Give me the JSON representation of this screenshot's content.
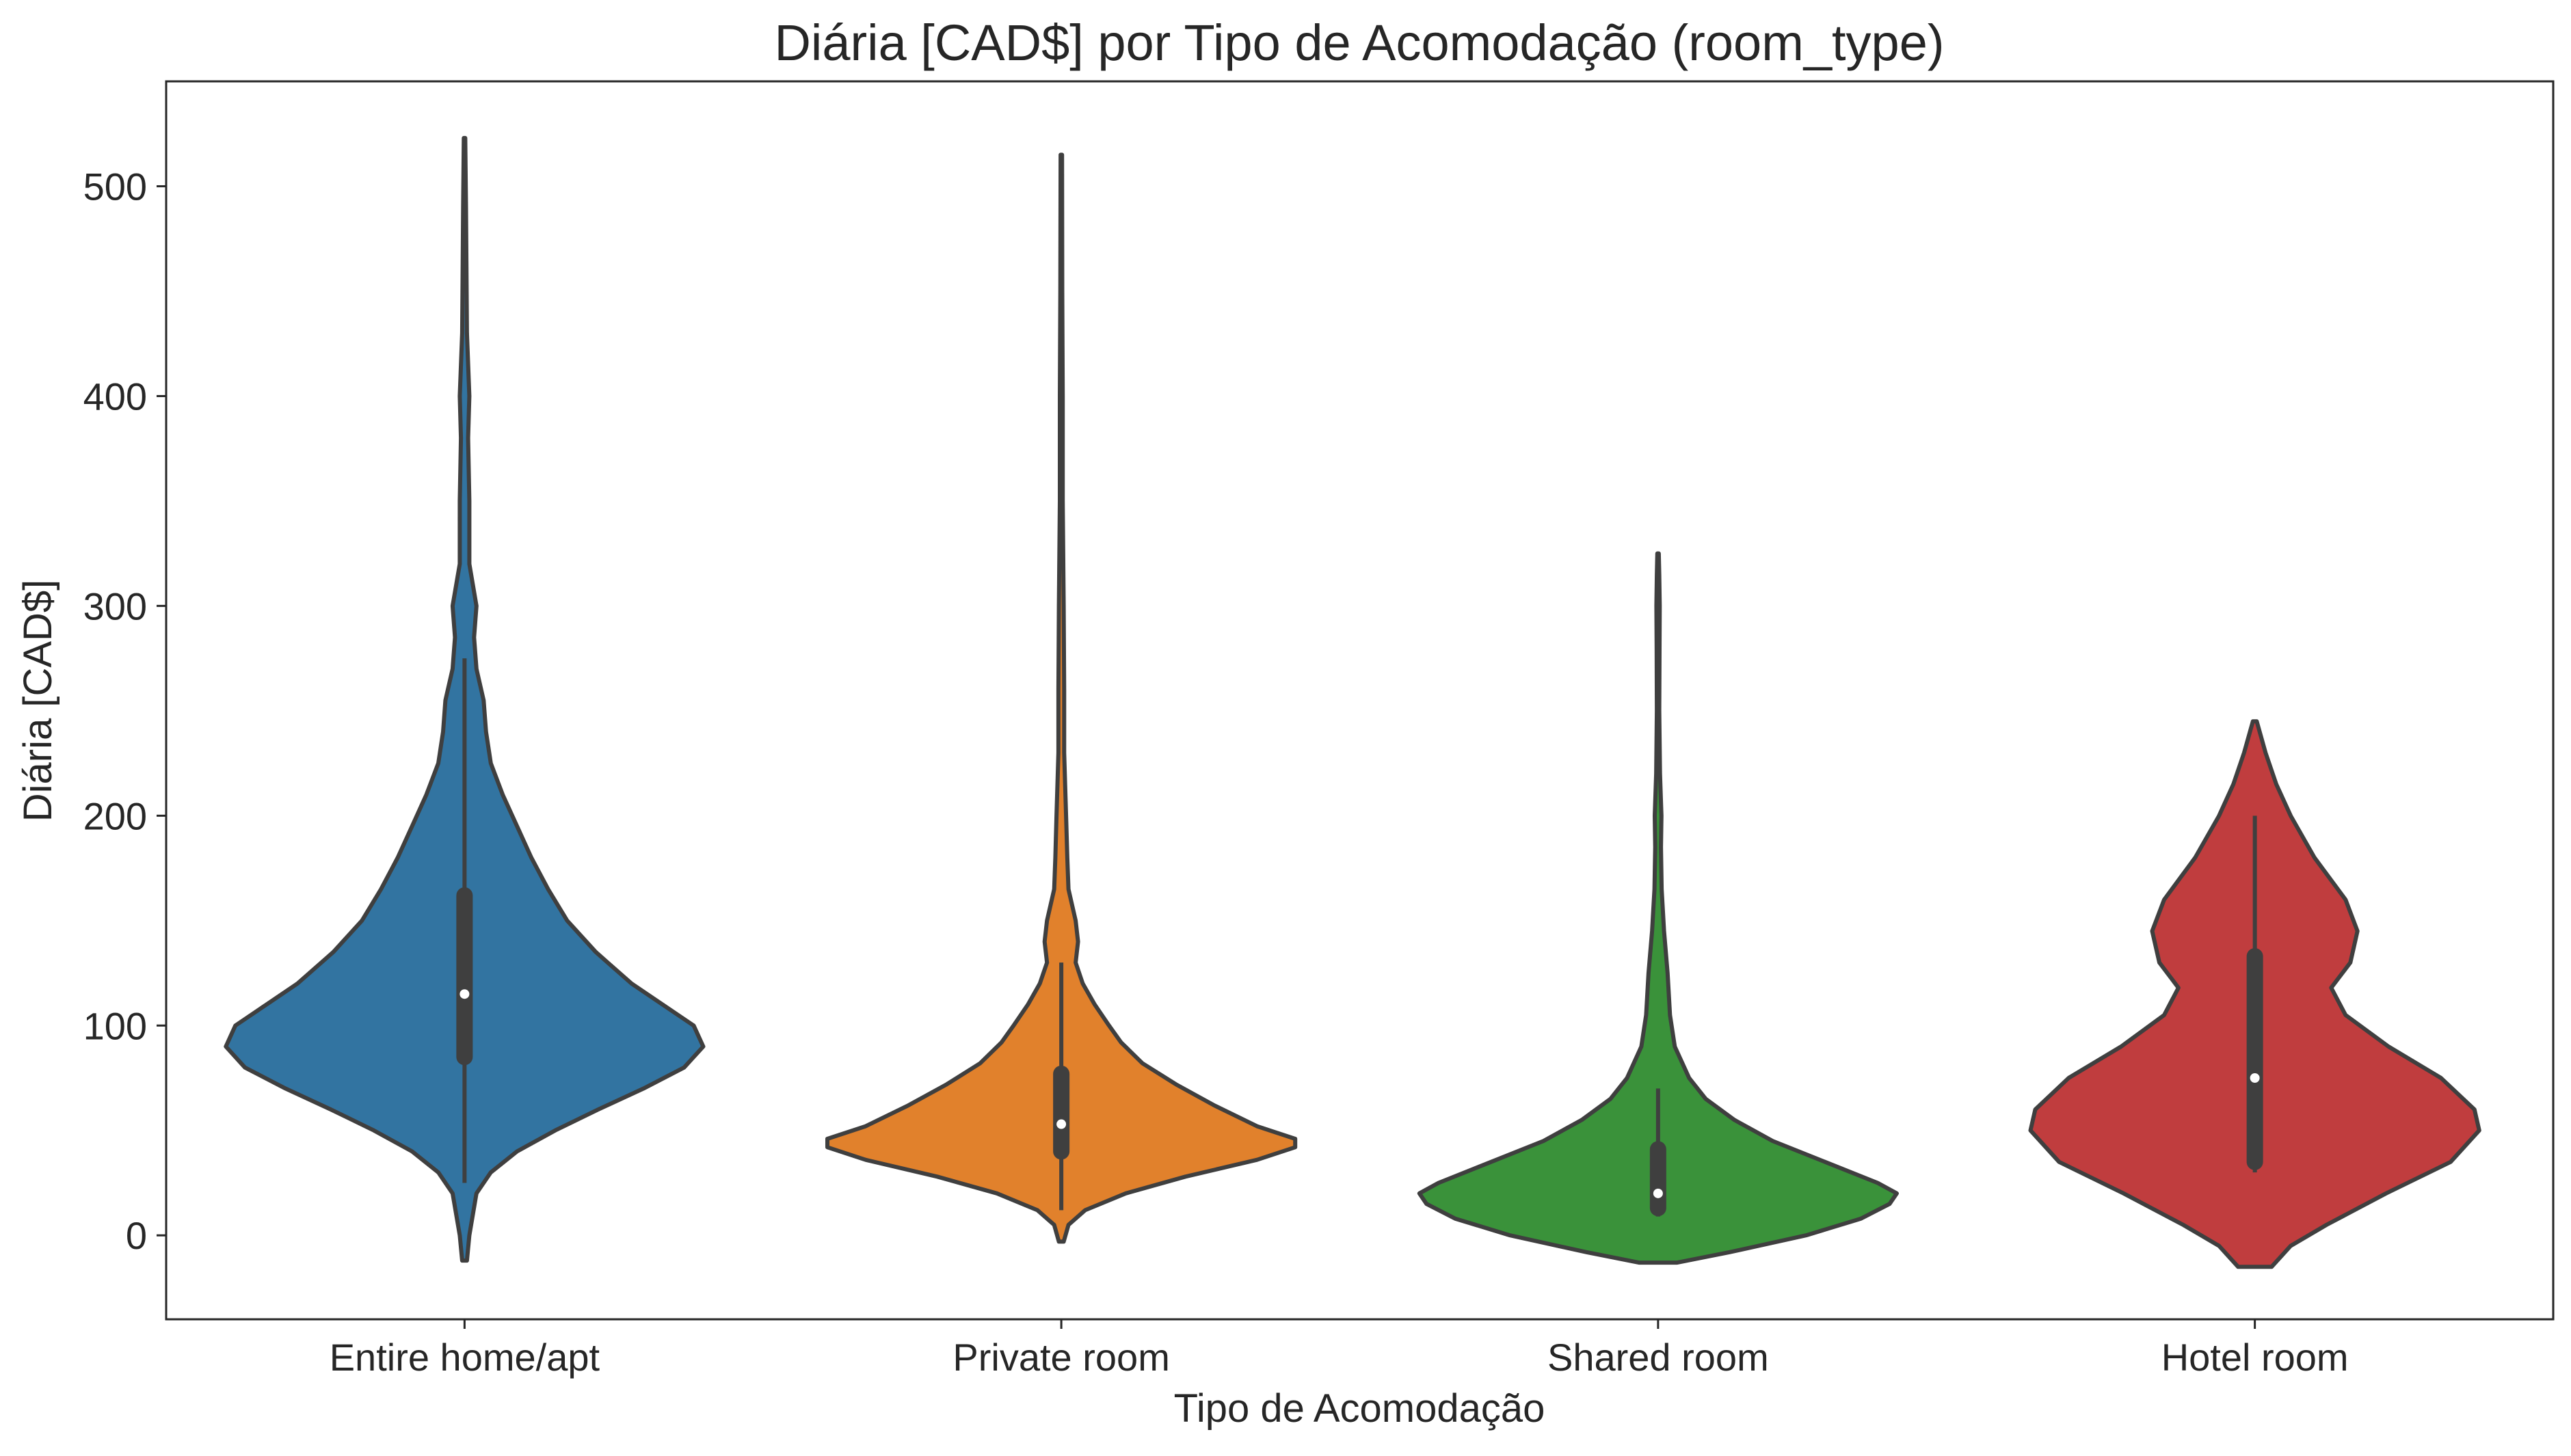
{
  "chart_data": {
    "type": "violin",
    "title": "Diária [CAD$] por Tipo de Acomodação (room_type)",
    "xlabel": "Tipo de Acomodação",
    "ylabel": "Diária [CAD$]",
    "ylim": [
      -40,
      550
    ],
    "yticks": [
      0,
      100,
      200,
      300,
      400,
      500
    ],
    "grid": false,
    "legend": "none",
    "categories": [
      "Entire home/apt",
      "Private room",
      "Shared room",
      "Hotel room"
    ],
    "series": [
      {
        "color": "#3274a1",
        "median": 115,
        "q1": 85,
        "q3": 162,
        "whisker_low": 25,
        "whisker_high": 275,
        "min": -12,
        "max": 523,
        "density": [
          [
            -12,
            0.01
          ],
          [
            0,
            0.02
          ],
          [
            20,
            0.05
          ],
          [
            30,
            0.11
          ],
          [
            40,
            0.22
          ],
          [
            50,
            0.38
          ],
          [
            60,
            0.56
          ],
          [
            70,
            0.75
          ],
          [
            80,
            0.92
          ],
          [
            90,
            1.0
          ],
          [
            100,
            0.96
          ],
          [
            110,
            0.83
          ],
          [
            120,
            0.7
          ],
          [
            135,
            0.55
          ],
          [
            150,
            0.43
          ],
          [
            165,
            0.35
          ],
          [
            180,
            0.28
          ],
          [
            195,
            0.22
          ],
          [
            210,
            0.16
          ],
          [
            225,
            0.11
          ],
          [
            240,
            0.09
          ],
          [
            255,
            0.08
          ],
          [
            270,
            0.05
          ],
          [
            285,
            0.04
          ],
          [
            300,
            0.05
          ],
          [
            320,
            0.02
          ],
          [
            350,
            0.02
          ],
          [
            380,
            0.015
          ],
          [
            400,
            0.02
          ],
          [
            430,
            0.01
          ],
          [
            460,
            0.008
          ],
          [
            490,
            0.006
          ],
          [
            523,
            0.003
          ]
        ]
      },
      {
        "color": "#e1812c",
        "median": 53,
        "q1": 40,
        "q3": 77,
        "whisker_low": 12,
        "whisker_high": 130,
        "min": -3,
        "max": 515,
        "density": [
          [
            -3,
            0.01
          ],
          [
            5,
            0.03
          ],
          [
            12,
            0.1
          ],
          [
            20,
            0.27
          ],
          [
            28,
            0.52
          ],
          [
            36,
            0.82
          ],
          [
            42,
            0.98
          ],
          [
            46,
            0.98
          ],
          [
            52,
            0.82
          ],
          [
            62,
            0.64
          ],
          [
            72,
            0.48
          ],
          [
            82,
            0.34
          ],
          [
            92,
            0.25
          ],
          [
            100,
            0.2
          ],
          [
            110,
            0.14
          ],
          [
            120,
            0.09
          ],
          [
            130,
            0.06
          ],
          [
            140,
            0.07
          ],
          [
            150,
            0.06
          ],
          [
            165,
            0.03
          ],
          [
            180,
            0.025
          ],
          [
            200,
            0.02
          ],
          [
            230,
            0.012
          ],
          [
            260,
            0.012
          ],
          [
            300,
            0.01
          ],
          [
            350,
            0.006
          ],
          [
            400,
            0.006
          ],
          [
            450,
            0.004
          ],
          [
            515,
            0.003
          ]
        ]
      },
      {
        "color": "#3a923a",
        "median": 20,
        "q1": 13,
        "q3": 41,
        "whisker_low": 9,
        "whisker_high": 70,
        "min": -13,
        "max": 325,
        "density": [
          [
            -13,
            0.08
          ],
          [
            -8,
            0.3
          ],
          [
            0,
            0.62
          ],
          [
            8,
            0.85
          ],
          [
            15,
            0.97
          ],
          [
            20,
            1.0
          ],
          [
            25,
            0.92
          ],
          [
            35,
            0.7
          ],
          [
            45,
            0.48
          ],
          [
            55,
            0.32
          ],
          [
            65,
            0.2
          ],
          [
            75,
            0.13
          ],
          [
            90,
            0.07
          ],
          [
            105,
            0.05
          ],
          [
            125,
            0.04
          ],
          [
            145,
            0.025
          ],
          [
            165,
            0.015
          ],
          [
            185,
            0.012
          ],
          [
            200,
            0.014
          ],
          [
            220,
            0.008
          ],
          [
            250,
            0.005
          ],
          [
            280,
            0.006
          ],
          [
            300,
            0.007
          ],
          [
            315,
            0.005
          ],
          [
            325,
            0.003
          ]
        ]
      },
      {
        "color": "#c03d3e",
        "median": 75,
        "q1": 35,
        "q3": 133,
        "whisker_low": 30,
        "whisker_high": 200,
        "min": -15,
        "max": 245,
        "density": [
          [
            -15,
            0.07
          ],
          [
            -5,
            0.15
          ],
          [
            5,
            0.3
          ],
          [
            20,
            0.55
          ],
          [
            35,
            0.82
          ],
          [
            50,
            0.94
          ],
          [
            60,
            0.92
          ],
          [
            75,
            0.78
          ],
          [
            90,
            0.56
          ],
          [
            105,
            0.38
          ],
          [
            118,
            0.32
          ],
          [
            130,
            0.4
          ],
          [
            145,
            0.43
          ],
          [
            160,
            0.38
          ],
          [
            180,
            0.25
          ],
          [
            200,
            0.15
          ],
          [
            215,
            0.09
          ],
          [
            230,
            0.045
          ],
          [
            245,
            0.008
          ]
        ]
      }
    ]
  }
}
